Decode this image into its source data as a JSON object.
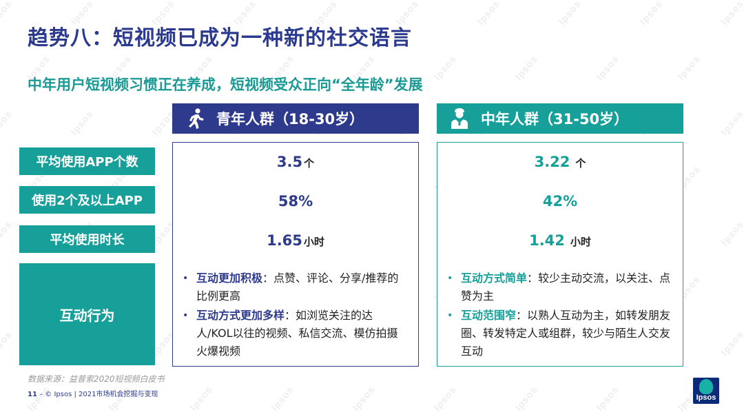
{
  "title": "趋势八：短视频已成为一种新的社交语言",
  "subtitle": "中年用户短视频习惯正在养成，短视频受众正向“全年龄”发展",
  "columns": {
    "young": {
      "header": "青年人群（18-30岁）",
      "icon": "running-person-icon",
      "color": "#2e3a8c"
    },
    "middle": {
      "header": "中年人群（31-50岁）",
      "icon": "businessman-icon",
      "color": "#17a09a"
    }
  },
  "rows": {
    "avg_apps": "平均使用APP个数",
    "two_plus_apps": "使用2个及以上APP",
    "avg_duration": "平均使用时长",
    "interaction": "互动行为"
  },
  "young": {
    "avg_apps": {
      "value": "3.5",
      "unit": "个"
    },
    "two_plus_apps": {
      "value": "58%"
    },
    "avg_duration": {
      "value": "1.65",
      "unit": "小时"
    },
    "bullets": [
      {
        "keyword": "互动更加积极",
        "text": "：点赞、评论、分享/推荐的比例更高"
      },
      {
        "keyword": "互动方式更加多样",
        "text": "：如浏览关注的达人/KOL以往的视频、私信交流、模仿拍摄火爆视频"
      }
    ]
  },
  "middle": {
    "avg_apps": {
      "value": "3.22",
      "unit": "个"
    },
    "two_plus_apps": {
      "value": "42%"
    },
    "avg_duration": {
      "value": "1.42",
      "unit": "小时"
    },
    "bullets": [
      {
        "keyword": "互动方式简单",
        "text": "：较少主动交流，以关注、点赞为主"
      },
      {
        "keyword": "互动范围窄",
        "text": "：以熟人互动为主，如转发朋友圈、转发特定人或组群，较少与陌生人交友互动"
      }
    ]
  },
  "source": "数据来源：益普索2020短视频白皮书",
  "footer": {
    "page": "11",
    "text": "– © Ipsos | 2021市场机会挖掘与变现"
  },
  "logo": {
    "text": "Ipsos",
    "colors": {
      "bg": "#0c2a7a",
      "blob": "#19b0a8"
    }
  },
  "watermark": "Ipsos"
}
